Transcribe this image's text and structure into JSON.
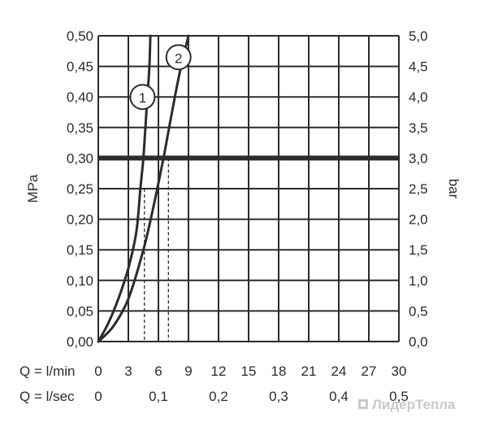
{
  "chart_data": {
    "type": "line",
    "x": {
      "label": "Q = l/min",
      "range": [
        0,
        30
      ],
      "ticks": [
        "0",
        "3",
        "6",
        "9",
        "12",
        "15",
        "18",
        "21",
        "24",
        "27",
        "30"
      ],
      "secondary_label": "Q = l/sec",
      "secondary_ticks": [
        {
          "value": 0,
          "label": "0"
        },
        {
          "value": 0.1,
          "label": "0,1"
        },
        {
          "value": 0.2,
          "label": "0,2"
        },
        {
          "value": 0.3,
          "label": "0,3"
        },
        {
          "value": 0.4,
          "label": "0,4"
        },
        {
          "value": 0.5,
          "label": "0,5"
        }
      ]
    },
    "y_left": {
      "label": "MPa",
      "range": [
        0,
        0.5
      ],
      "ticks": [
        "0,00",
        "0,05",
        "0,10",
        "0,15",
        "0,20",
        "0,25",
        "0,30",
        "0,35",
        "0,40",
        "0,45",
        "0,50"
      ]
    },
    "y_right": {
      "label": "bar",
      "range": [
        0,
        5
      ],
      "ticks": [
        "0,0",
        "0,5",
        "1,0",
        "1,5",
        "2,0",
        "2,5",
        "3,0",
        "3,5",
        "4,0",
        "4,5",
        "5,0"
      ]
    },
    "grid": true,
    "series": [
      {
        "name": "1",
        "points": [
          [
            0,
            0
          ],
          [
            1,
            0.03
          ],
          [
            2,
            0.07
          ],
          [
            3,
            0.12
          ],
          [
            3.8,
            0.18
          ],
          [
            4.2,
            0.25
          ],
          [
            4.5,
            0.3
          ],
          [
            4.7,
            0.35
          ],
          [
            4.9,
            0.4
          ],
          [
            5.1,
            0.45
          ],
          [
            5.2,
            0.5
          ]
        ]
      },
      {
        "name": "2",
        "points": [
          [
            0,
            0
          ],
          [
            1.5,
            0.025
          ],
          [
            3,
            0.07
          ],
          [
            4.5,
            0.15
          ],
          [
            5.5,
            0.22
          ],
          [
            6.5,
            0.3
          ],
          [
            7.3,
            0.37
          ],
          [
            8.0,
            0.43
          ],
          [
            8.7,
            0.48
          ],
          [
            9.0,
            0.5
          ]
        ]
      }
    ],
    "reference_line": {
      "y": 0.3
    },
    "guide_lines": [
      {
        "x": 4.6,
        "y": 0.25
      },
      {
        "x": 7.0,
        "y": 0.3
      }
    ],
    "colors": {
      "line": "#2b2b2b",
      "grid": "#2b2b2b",
      "text": "#2b2b2b"
    }
  },
  "watermark": {
    "text": "ЛидерТепла",
    "icon": "square-logo-icon"
  }
}
